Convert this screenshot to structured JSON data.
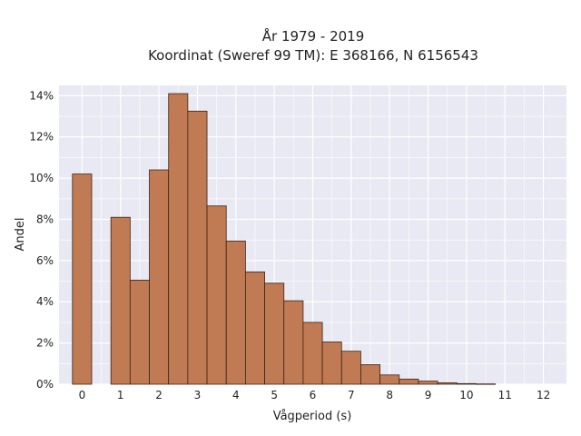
{
  "chart_data": {
    "type": "bar",
    "title_line1": "År 1979 - 2019",
    "title_line2": "Koordinat (Sweref 99 TM): E 368166, N 6156543",
    "xlabel": "Vågperiod (s)",
    "ylabel": "Andel",
    "x_ticks": [
      "0",
      "1",
      "2",
      "3",
      "4",
      "5",
      "6",
      "7",
      "8",
      "9",
      "10",
      "11",
      "12"
    ],
    "y_ticks": [
      "0%",
      "2%",
      "4%",
      "6%",
      "8%",
      "10%",
      "12%",
      "14%"
    ],
    "xlim": [
      -0.6,
      12.6
    ],
    "ylim": [
      0,
      14.5
    ],
    "bar_width": 0.5,
    "bars": [
      {
        "x": 0.0,
        "value": 10.2
      },
      {
        "x": 1.0,
        "value": 8.1
      },
      {
        "x": 1.5,
        "value": 5.05
      },
      {
        "x": 2.0,
        "value": 10.4
      },
      {
        "x": 2.5,
        "value": 14.1
      },
      {
        "x": 3.0,
        "value": 13.25
      },
      {
        "x": 3.5,
        "value": 8.65
      },
      {
        "x": 4.0,
        "value": 6.95
      },
      {
        "x": 4.5,
        "value": 5.45
      },
      {
        "x": 5.0,
        "value": 4.9
      },
      {
        "x": 5.5,
        "value": 4.05
      },
      {
        "x": 6.0,
        "value": 3.0
      },
      {
        "x": 6.5,
        "value": 2.05
      },
      {
        "x": 7.0,
        "value": 1.6
      },
      {
        "x": 7.5,
        "value": 0.95
      },
      {
        "x": 8.0,
        "value": 0.45
      },
      {
        "x": 8.5,
        "value": 0.25
      },
      {
        "x": 9.0,
        "value": 0.15
      },
      {
        "x": 9.5,
        "value": 0.07
      },
      {
        "x": 10.0,
        "value": 0.03
      },
      {
        "x": 10.5,
        "value": 0.015
      }
    ],
    "grid": true,
    "colors": {
      "bar_fill": "#c07a54",
      "bar_edge": "#3d2416",
      "plot_bg": "#e8e9f2",
      "grid": "#ffffff"
    }
  }
}
